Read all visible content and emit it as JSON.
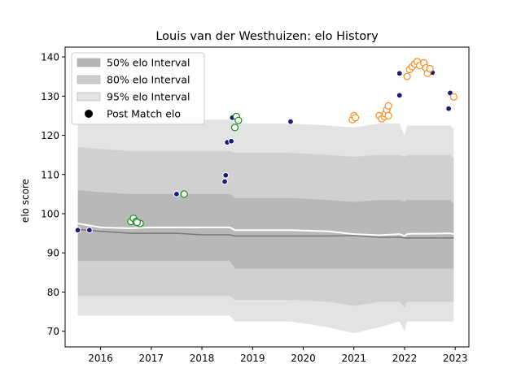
{
  "chart_data": {
    "type": "scatter",
    "title": "Louis van der Westhuizen: elo History",
    "xlabel": "",
    "ylabel": "elo score",
    "xlim": [
      2015.3,
      2023.27
    ],
    "ylim": [
      66.0,
      142.5
    ],
    "xticks": [
      2016,
      2017,
      2018,
      2019,
      2020,
      2021,
      2022,
      2023
    ],
    "yticks": [
      70,
      80,
      90,
      100,
      110,
      120,
      130,
      140
    ],
    "grid": false,
    "legend": {
      "placement": "top-left",
      "entries": [
        "50% elo Interval",
        "80% elo Interval",
        "95% elo Interval",
        "Post Match elo"
      ]
    },
    "colors": {
      "band95": "#e3e3e3",
      "band80": "#cccccc",
      "band50": "#b5b5b5",
      "mean_line": "#ffffff",
      "median_line": "#777777",
      "navy": "#1a1a7a",
      "green": "#1f8a1f",
      "orange": "#ff8c1a"
    },
    "bands": {
      "x": [
        2015.55,
        2016.0,
        2016.6,
        2017.0,
        2017.5,
        2018.0,
        2018.55,
        2018.65,
        2019.0,
        2019.75,
        2020.5,
        2021.0,
        2021.5,
        2021.9,
        2022.0,
        2022.05,
        2022.15,
        2022.5,
        2022.9,
        2022.97
      ],
      "p95_low": [
        74.0,
        74.0,
        74.0,
        74.0,
        74.0,
        74.0,
        74.0,
        72.5,
        72.5,
        72.5,
        71.0,
        69.5,
        71.0,
        72.5,
        70.0,
        72.5,
        72.5,
        72.5,
        72.5,
        72.5
      ],
      "p80_low": [
        79.0,
        79.0,
        79.0,
        79.0,
        79.0,
        79.0,
        79.0,
        78.0,
        78.0,
        78.0,
        77.5,
        76.5,
        77.5,
        77.5,
        76.0,
        77.5,
        77.5,
        77.5,
        77.5,
        77.5
      ],
      "p50_low": [
        88.0,
        88.0,
        88.0,
        88.0,
        88.0,
        88.0,
        88.0,
        86.0,
        86.0,
        86.0,
        86.0,
        86.0,
        86.0,
        86.0,
        86.0,
        86.0,
        86.0,
        86.0,
        86.0,
        86.0
      ],
      "p50_high": [
        106.0,
        105.5,
        105.0,
        105.0,
        105.0,
        105.0,
        105.0,
        104.0,
        104.0,
        104.0,
        103.5,
        103.0,
        103.5,
        103.5,
        103.0,
        103.5,
        103.5,
        103.5,
        103.5,
        102.5
      ],
      "p80_high": [
        117.0,
        116.5,
        116.0,
        116.0,
        116.0,
        116.0,
        116.0,
        115.5,
        115.5,
        115.5,
        115.0,
        114.5,
        115.0,
        115.0,
        114.5,
        115.0,
        115.0,
        115.0,
        115.0,
        114.0
      ],
      "p95_high": [
        125.0,
        124.5,
        124.0,
        124.0,
        124.0,
        124.0,
        124.0,
        123.0,
        123.0,
        123.0,
        122.5,
        122.0,
        123.0,
        123.0,
        120.0,
        122.5,
        122.5,
        122.5,
        122.5,
        121.5
      ],
      "mean": [
        97.5,
        96.5,
        96.3,
        96.5,
        96.5,
        96.5,
        96.5,
        95.8,
        95.8,
        95.8,
        95.5,
        94.8,
        94.5,
        94.8,
        94.3,
        94.8,
        94.9,
        94.9,
        95.0,
        94.8
      ],
      "median": [
        96.0,
        95.5,
        95.0,
        95.0,
        95.0,
        94.6,
        94.6,
        94.3,
        94.3,
        94.3,
        94.3,
        94.4,
        94.0,
        94.0,
        93.8,
        93.8,
        93.8,
        93.8,
        93.8,
        93.8
      ]
    },
    "series": [
      {
        "color": "navy",
        "filled": true,
        "points": [
          [
            2015.55,
            95.8
          ],
          [
            2015.78,
            95.8
          ],
          [
            2016.6,
            98.2
          ],
          [
            2017.5,
            105.0
          ],
          [
            2018.45,
            108.2
          ],
          [
            2018.47,
            109.8
          ],
          [
            2018.5,
            118.2
          ],
          [
            2018.58,
            118.5
          ],
          [
            2018.6,
            124.5
          ],
          [
            2019.75,
            123.5
          ],
          [
            2021.9,
            130.2
          ],
          [
            2021.9,
            135.8
          ],
          [
            2022.55,
            136.0
          ],
          [
            2022.87,
            126.8
          ],
          [
            2022.9,
            130.8
          ],
          [
            2022.97,
            129.8
          ]
        ]
      },
      {
        "color": "green",
        "filled": false,
        "points": [
          [
            2016.6,
            98.0
          ],
          [
            2016.65,
            98.8
          ],
          [
            2016.7,
            98.0
          ],
          [
            2016.78,
            97.5
          ],
          [
            2016.72,
            97.8
          ],
          [
            2017.65,
            105.0
          ],
          [
            2018.65,
            122.0
          ],
          [
            2018.68,
            124.8
          ],
          [
            2018.72,
            123.8
          ]
        ]
      },
      {
        "color": "orange",
        "filled": false,
        "points": [
          [
            2020.97,
            124.0
          ],
          [
            2021.0,
            125.0
          ],
          [
            2021.03,
            124.5
          ],
          [
            2021.5,
            125.0
          ],
          [
            2021.55,
            124.2
          ],
          [
            2021.6,
            124.8
          ],
          [
            2021.62,
            125.5
          ],
          [
            2021.65,
            126.5
          ],
          [
            2021.68,
            127.5
          ],
          [
            2021.68,
            125.0
          ],
          [
            2022.05,
            135.0
          ],
          [
            2022.1,
            136.8
          ],
          [
            2022.15,
            137.5
          ],
          [
            2022.2,
            138.2
          ],
          [
            2022.25,
            138.8
          ],
          [
            2022.3,
            137.8
          ],
          [
            2022.38,
            138.5
          ],
          [
            2022.42,
            137.2
          ],
          [
            2022.45,
            135.8
          ],
          [
            2022.5,
            137.0
          ],
          [
            2022.97,
            129.8
          ]
        ]
      }
    ]
  }
}
